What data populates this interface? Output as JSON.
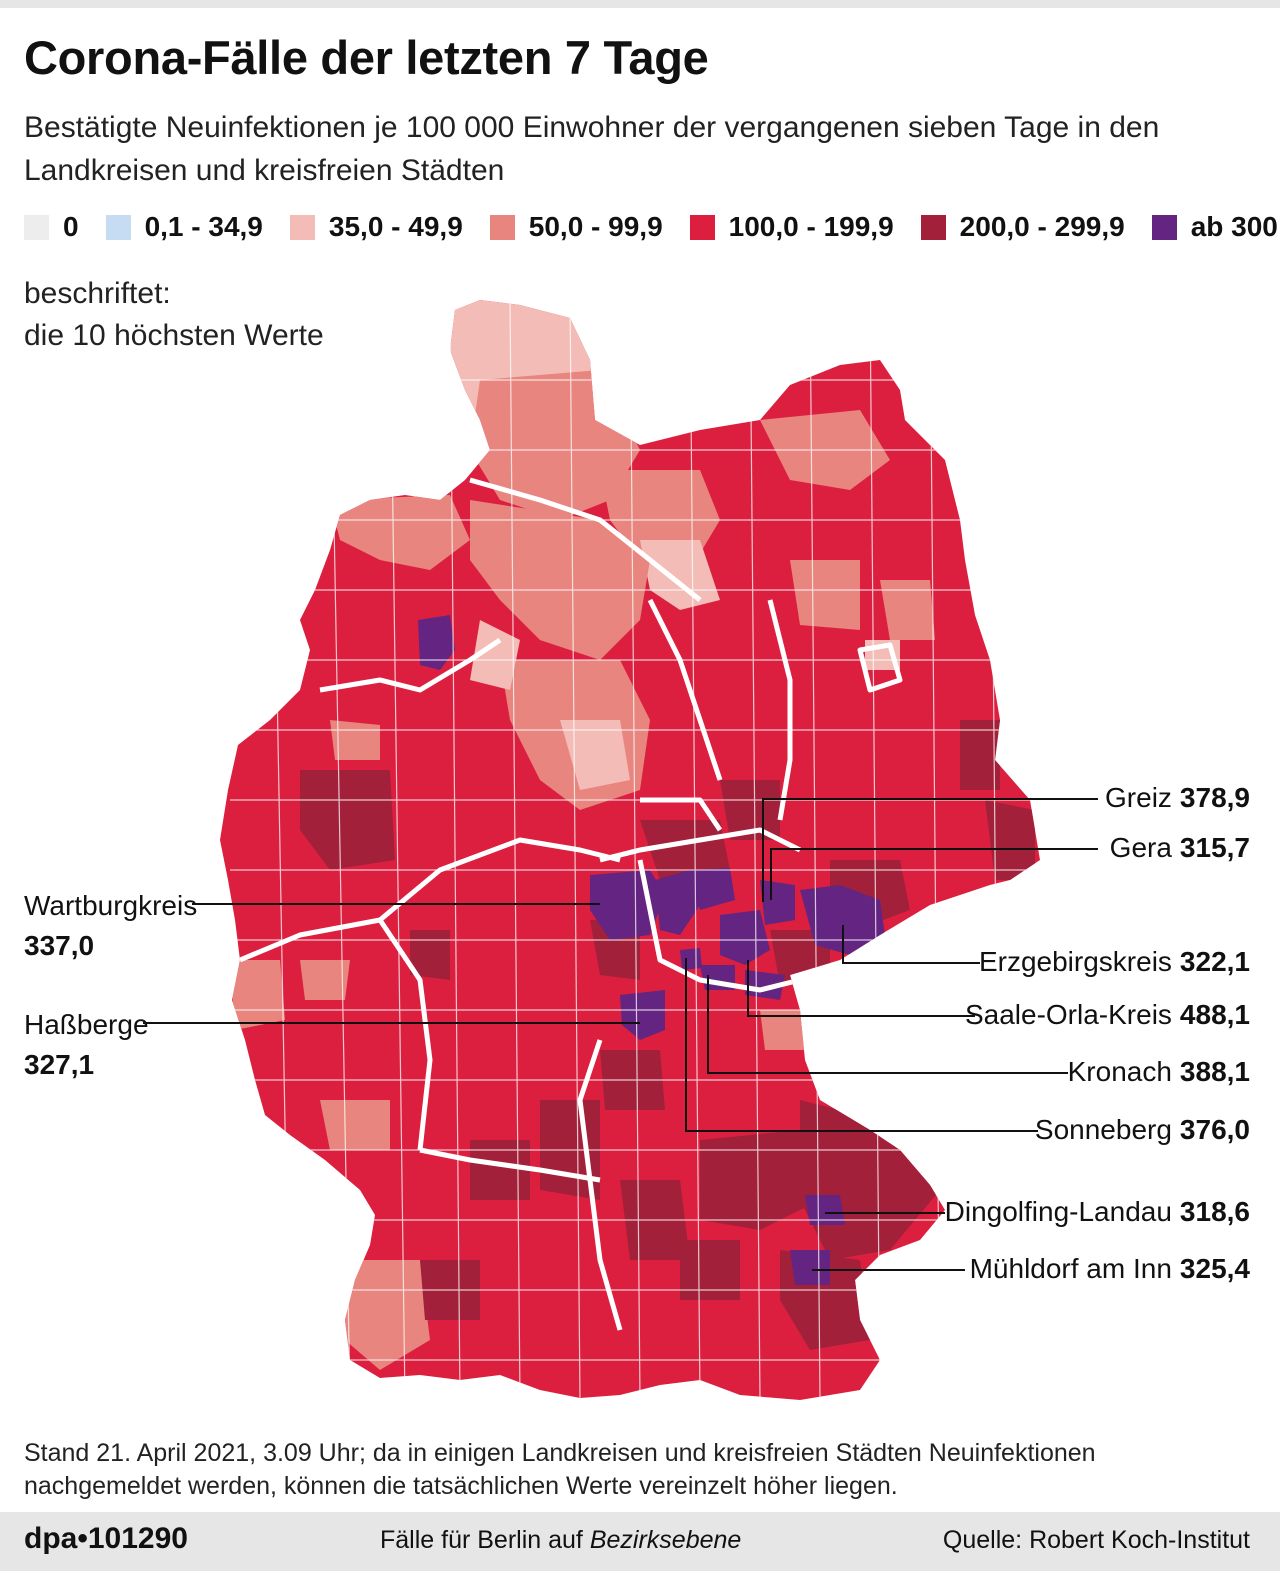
{
  "header": {
    "title": "Corona-Fälle der letzten 7 Tage",
    "subtitle": "Bestätigte Neuinfektionen je 100 000 Einwohner der vergangenen sieben Tage in den Landkreisen und kreisfreien Städten"
  },
  "legend": [
    {
      "label": "0",
      "color": "#ededed"
    },
    {
      "label": "0,1 - 34,9",
      "color": "#c6dcf2"
    },
    {
      "label": "35,0 - 49,9",
      "color": "#f3bcb6"
    },
    {
      "label": "50,0 - 99,9",
      "color": "#e8857f"
    },
    {
      "label": "100,0 - 199,9",
      "color": "#dc1f3f"
    },
    {
      "label": "200,0 - 299,9",
      "color": "#a3203a"
    },
    {
      "label": "ab 300",
      "color": "#632581"
    }
  ],
  "labeled_note": {
    "line1": "beschriftet:",
    "line2": "die 10 höchsten Werte"
  },
  "callouts": [
    {
      "name": "Greiz",
      "value": "378,9"
    },
    {
      "name": "Gera",
      "value": "315,7"
    },
    {
      "name": "Erzgebirgskreis",
      "value": "322,1"
    },
    {
      "name": "Saale-Orla-Kreis",
      "value": "488,1"
    },
    {
      "name": "Kronach",
      "value": "388,1"
    },
    {
      "name": "Sonneberg",
      "value": "376,0"
    },
    {
      "name": "Dingolfing-Landau",
      "value": "318,6"
    },
    {
      "name": "Mühldorf am Inn",
      "value": "325,4"
    },
    {
      "name": "Wartburgkreis",
      "value": "337,0"
    },
    {
      "name": "Haßberge",
      "value": "327,1"
    }
  ],
  "footnote": "Stand 21. April 2021, 3.09 Uhr; da in einigen Landkreisen und kreisfreien Städten Neuinfektionen nachgemeldet werden, können die tatsächlichen Werte vereinzelt höher liegen.",
  "footer": {
    "agency": "dpa•101290",
    "berlin_prefix": "Fälle für Berlin auf ",
    "berlin_emphasis": "Bezirksebene",
    "source": "Quelle: Robert Koch-Institut"
  },
  "colors": {
    "level_50_99": "#e8857f",
    "level_35_49": "#f3bcb6",
    "level_100_199": "#dc1f3f",
    "level_200_299": "#a3203a",
    "level_300": "#632581"
  }
}
